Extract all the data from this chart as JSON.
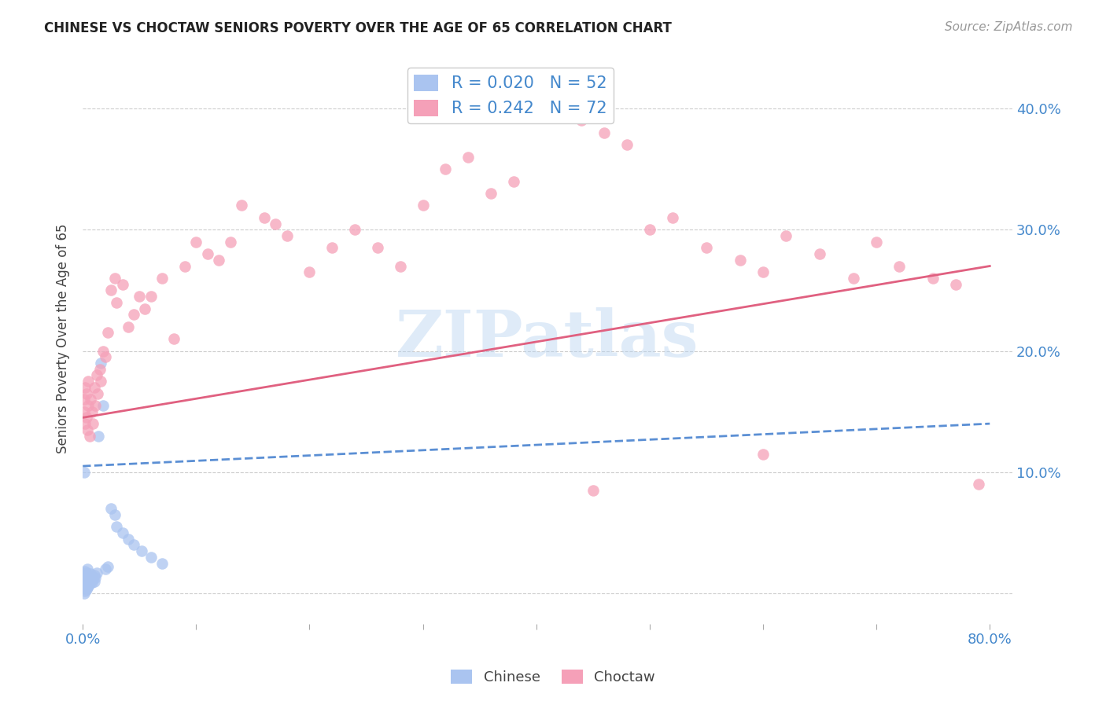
{
  "title": "CHINESE VS CHOCTAW SENIORS POVERTY OVER THE AGE OF 65 CORRELATION CHART",
  "source": "Source: ZipAtlas.com",
  "ylabel": "Seniors Poverty Over the Age of 65",
  "r_chinese": 0.02,
  "n_chinese": 52,
  "r_choctaw": 0.242,
  "n_choctaw": 72,
  "color_chinese": "#aac4f0",
  "color_choctaw": "#f5a0b8",
  "color_chinese_line": "#5b8fd4",
  "color_choctaw_line": "#e06080",
  "color_axis_labels": "#4488cc",
  "color_title": "#222222",
  "watermark_text": "ZIPatlas",
  "background_color": "#ffffff",
  "xlim": [
    0.0,
    0.82
  ],
  "ylim": [
    -0.025,
    0.445
  ],
  "chinese_trendline_x": [
    0.0,
    0.8
  ],
  "chinese_trendline_y": [
    0.105,
    0.14
  ],
  "choctaw_trendline_x": [
    0.0,
    0.8
  ],
  "choctaw_trendline_y": [
    0.145,
    0.27
  ],
  "chinese_x": [
    0.001,
    0.001,
    0.001,
    0.001,
    0.001,
    0.001,
    0.001,
    0.001,
    0.002,
    0.002,
    0.002,
    0.002,
    0.002,
    0.002,
    0.002,
    0.003,
    0.003,
    0.003,
    0.003,
    0.003,
    0.004,
    0.004,
    0.004,
    0.004,
    0.005,
    0.005,
    0.005,
    0.006,
    0.006,
    0.007,
    0.007,
    0.008,
    0.008,
    0.009,
    0.01,
    0.01,
    0.011,
    0.012,
    0.014,
    0.016,
    0.018,
    0.02,
    0.022,
    0.025,
    0.028,
    0.03,
    0.035,
    0.04,
    0.045,
    0.052,
    0.06,
    0.07
  ],
  "chinese_y": [
    0.0,
    0.005,
    0.008,
    0.01,
    0.012,
    0.014,
    0.016,
    0.1,
    0.002,
    0.006,
    0.009,
    0.011,
    0.013,
    0.015,
    0.018,
    0.003,
    0.007,
    0.01,
    0.013,
    0.017,
    0.005,
    0.009,
    0.012,
    0.02,
    0.006,
    0.011,
    0.015,
    0.008,
    0.013,
    0.01,
    0.016,
    0.009,
    0.014,
    0.012,
    0.01,
    0.015,
    0.013,
    0.017,
    0.13,
    0.19,
    0.155,
    0.02,
    0.022,
    0.07,
    0.065,
    0.055,
    0.05,
    0.045,
    0.04,
    0.035,
    0.03,
    0.025
  ],
  "choctaw_x": [
    0.001,
    0.001,
    0.002,
    0.002,
    0.003,
    0.003,
    0.004,
    0.005,
    0.005,
    0.006,
    0.007,
    0.008,
    0.009,
    0.01,
    0.011,
    0.012,
    0.013,
    0.015,
    0.016,
    0.018,
    0.02,
    0.022,
    0.025,
    0.028,
    0.03,
    0.035,
    0.04,
    0.045,
    0.05,
    0.055,
    0.06,
    0.07,
    0.08,
    0.09,
    0.1,
    0.11,
    0.12,
    0.13,
    0.14,
    0.16,
    0.17,
    0.18,
    0.2,
    0.22,
    0.24,
    0.26,
    0.28,
    0.3,
    0.32,
    0.34,
    0.36,
    0.38,
    0.4,
    0.42,
    0.44,
    0.46,
    0.48,
    0.5,
    0.52,
    0.55,
    0.58,
    0.6,
    0.62,
    0.65,
    0.68,
    0.7,
    0.72,
    0.75,
    0.77,
    0.79,
    0.6,
    0.45
  ],
  "choctaw_y": [
    0.15,
    0.16,
    0.14,
    0.17,
    0.145,
    0.165,
    0.135,
    0.155,
    0.175,
    0.13,
    0.16,
    0.15,
    0.14,
    0.17,
    0.155,
    0.18,
    0.165,
    0.185,
    0.175,
    0.2,
    0.195,
    0.215,
    0.25,
    0.26,
    0.24,
    0.255,
    0.22,
    0.23,
    0.245,
    0.235,
    0.245,
    0.26,
    0.21,
    0.27,
    0.29,
    0.28,
    0.275,
    0.29,
    0.32,
    0.31,
    0.305,
    0.295,
    0.265,
    0.285,
    0.3,
    0.285,
    0.27,
    0.32,
    0.35,
    0.36,
    0.33,
    0.34,
    0.415,
    0.42,
    0.39,
    0.38,
    0.37,
    0.3,
    0.31,
    0.285,
    0.275,
    0.265,
    0.295,
    0.28,
    0.26,
    0.29,
    0.27,
    0.26,
    0.255,
    0.09,
    0.115,
    0.085
  ]
}
